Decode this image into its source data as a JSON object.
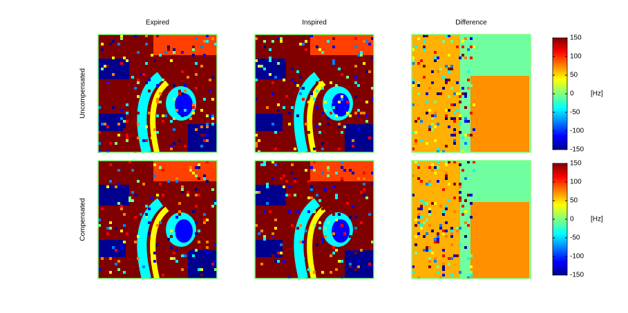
{
  "figure": {
    "columns": [
      "Expired",
      "Inspired",
      "Difference"
    ],
    "rows": [
      "Uncompensated",
      "Compensated"
    ],
    "colorbars": [
      {
        "lim": [
          -150,
          150
        ],
        "ticks": [
          150,
          100,
          50,
          0,
          -50,
          -100,
          -150
        ],
        "label": "[Hz]"
      },
      {
        "lim": [
          -150,
          150
        ],
        "ticks": [
          150,
          100,
          50,
          0,
          -50,
          -100,
          -150
        ],
        "label": "[Hz]"
      }
    ]
  }
}
